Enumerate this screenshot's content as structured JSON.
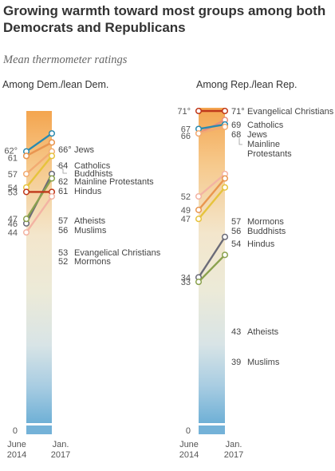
{
  "title": "Growing warmth toward most groups among both Democrats and Republicans",
  "subtitle": "Mean thermometer ratings",
  "chart_data": [
    {
      "type": "line",
      "panel_title": "Among Dem./lean Dem.",
      "x": [
        "June 2014",
        "Jan. 2017"
      ],
      "xtick_labels": [
        [
          "June",
          "2014"
        ],
        [
          "Jan.",
          "2017"
        ]
      ],
      "axis_zero_label": "0",
      "ylim": [
        0,
        100
      ],
      "series": [
        {
          "name": "Jews",
          "values": [
            62,
            66
          ],
          "color": "#2a8ab0",
          "labels": [
            "62°",
            "66°"
          ]
        },
        {
          "name": "Catholics",
          "values": [
            61,
            64
          ],
          "color": "#e88f7a",
          "labels": [
            "61",
            "64"
          ]
        },
        {
          "name": "Buddhists",
          "values": [
            61,
            64
          ],
          "color": "#e9964f",
          "labels": [
            "",
            ""
          ]
        },
        {
          "name": "Mainline Protestants",
          "values": [
            57,
            62
          ],
          "color": "#f2ab72",
          "labels": [
            "57",
            "62"
          ]
        },
        {
          "name": "Hindus",
          "values": [
            54,
            61
          ],
          "color": "#e6c33d",
          "labels": [
            "54",
            "61"
          ]
        },
        {
          "name": "Atheists",
          "values": [
            46,
            57
          ],
          "color": "#6b6b78",
          "labels": [
            "46",
            "57"
          ]
        },
        {
          "name": "Muslims",
          "values": [
            47,
            56
          ],
          "color": "#8aa14e",
          "labels": [
            "47",
            "56"
          ]
        },
        {
          "name": "Evangelical Christians",
          "values": [
            53,
            53
          ],
          "color": "#c0391b",
          "labels": [
            "53",
            "53"
          ]
        },
        {
          "name": "Mormons",
          "values": [
            44,
            52
          ],
          "color": "#f3b3a3",
          "labels": [
            "44",
            "52"
          ]
        }
      ],
      "right_labels": [
        {
          "value": "66°",
          "text": "Jews",
          "color": "#2a8ab0"
        },
        {
          "value": "64",
          "text": "Catholics",
          "color": "#e88f7a"
        },
        {
          "value": "",
          "text": "Buddhists",
          "color": "#e9964f"
        },
        {
          "value": "62",
          "text": "Mainline Protestants",
          "color": "#f2ab72"
        },
        {
          "value": "61",
          "text": "Hindus",
          "color": "#e6c33d"
        },
        {
          "value": "57",
          "text": "Atheists",
          "color": "#6b6b78"
        },
        {
          "value": "56",
          "text": "Muslims",
          "color": "#8aa14e"
        },
        {
          "value": "53",
          "text": "Evangelical Christians",
          "color": "#c0391b"
        },
        {
          "value": "52",
          "text": "Mormons",
          "color": "#f3b3a3"
        }
      ],
      "left_labels": [
        "62°",
        "61",
        "57",
        "54",
        "53",
        "47",
        "46",
        "44"
      ]
    },
    {
      "type": "line",
      "panel_title": "Among Rep./lean Rep.",
      "x": [
        "June 2014",
        "Jan. 2017"
      ],
      "xtick_labels": [
        [
          "June",
          "2014"
        ],
        [
          "Jan.",
          "2017"
        ]
      ],
      "axis_zero_label": "0",
      "ylim": [
        0,
        100
      ],
      "series": [
        {
          "name": "Evangelical Christians",
          "values": [
            71,
            71
          ],
          "color": "#c0391b",
          "labels": [
            "71°",
            "71°"
          ]
        },
        {
          "name": "Catholics",
          "values": [
            66,
            69
          ],
          "color": "#e88f7a",
          "labels": [
            "66",
            "69"
          ]
        },
        {
          "name": "Jews",
          "values": [
            67,
            68
          ],
          "color": "#2a8ab0",
          "labels": [
            "67",
            "68"
          ]
        },
        {
          "name": "Mainline Protestants",
          "values": [
            66,
            68
          ],
          "color": "#f2ab72",
          "labels": [
            "",
            ""
          ]
        },
        {
          "name": "Mormons",
          "values": [
            52,
            57
          ],
          "color": "#f3b3a3",
          "labels": [
            "52",
            "57"
          ]
        },
        {
          "name": "Buddhists",
          "values": [
            49,
            56
          ],
          "color": "#e9964f",
          "labels": [
            "49",
            "56"
          ]
        },
        {
          "name": "Hindus",
          "values": [
            47,
            54
          ],
          "color": "#e6c33d",
          "labels": [
            "47",
            "54"
          ]
        },
        {
          "name": "Atheists",
          "values": [
            34,
            43
          ],
          "color": "#6b6b78",
          "labels": [
            "34",
            "43"
          ]
        },
        {
          "name": "Muslims",
          "values": [
            33,
            39
          ],
          "color": "#8aa14e",
          "labels": [
            "33",
            "39"
          ]
        }
      ],
      "right_labels": [
        {
          "value": "71°",
          "text": "Evangelical Christians",
          "color": "#c0391b"
        },
        {
          "value": "69",
          "text": "Catholics",
          "color": "#e88f7a"
        },
        {
          "value": "68",
          "text": "Jews",
          "color": "#2a8ab0"
        },
        {
          "value": "",
          "text": "Mainline",
          "color": "#f2ab72"
        },
        {
          "value": "",
          "text": "Protestants",
          "color": "#f2ab72"
        },
        {
          "value": "57",
          "text": "Mormons",
          "color": "#f3b3a3"
        },
        {
          "value": "56",
          "text": "Buddhists",
          "color": "#e9964f"
        },
        {
          "value": "54",
          "text": "Hindus",
          "color": "#e6c33d"
        },
        {
          "value": "43",
          "text": "Atheists",
          "color": "#6b6b78"
        },
        {
          "value": "39",
          "text": "Muslims",
          "color": "#8aa14e"
        }
      ],
      "left_labels": [
        "71°",
        "67",
        "66",
        "52",
        "49",
        "47",
        "34",
        "33"
      ]
    }
  ]
}
